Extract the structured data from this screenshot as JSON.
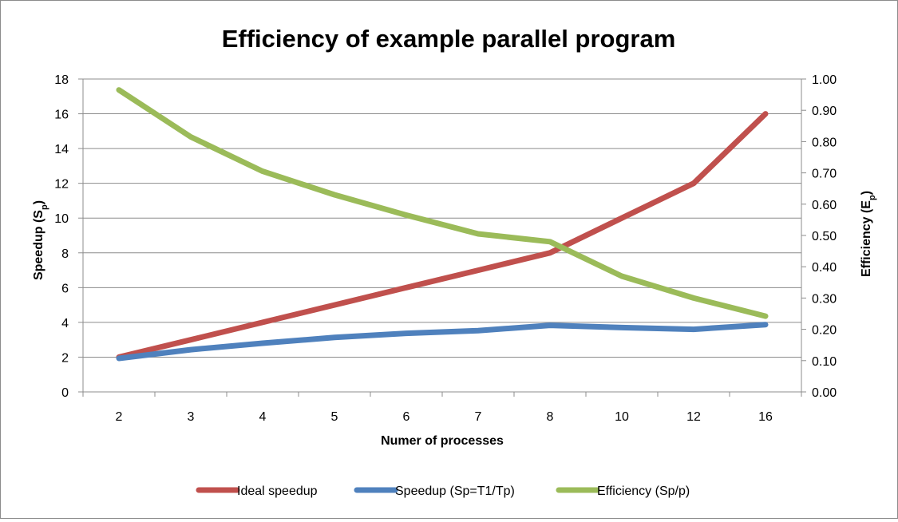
{
  "chart_data": {
    "type": "line",
    "title": "Efficiency of example parallel program",
    "xlabel": "Numer of processes",
    "ylabel": {
      "main": "Speedup (S",
      "sub": "p",
      "end": ")"
    },
    "y2label": {
      "main": "Efficiency (E",
      "sub": "p",
      "end": ")"
    },
    "categories": [
      "2",
      "3",
      "4",
      "5",
      "6",
      "7",
      "8",
      "10",
      "12",
      "16"
    ],
    "ylim": [
      0,
      18
    ],
    "y2lim": [
      0,
      1
    ],
    "yticks": [
      "0",
      "2",
      "4",
      "6",
      "8",
      "10",
      "12",
      "14",
      "16",
      "18"
    ],
    "y2ticks": [
      "0.00",
      "0.10",
      "0.20",
      "0.30",
      "0.40",
      "0.50",
      "0.60",
      "0.70",
      "0.80",
      "0.90",
      "1.00"
    ],
    "grid": true,
    "legend": "bottom",
    "series": [
      {
        "name": "Ideal speedup",
        "axis": "left",
        "color": "#c0504d",
        "values": [
          2,
          3,
          4,
          5,
          6,
          7,
          8,
          10,
          12,
          16
        ]
      },
      {
        "name": "Speedup (Sp=T1/Tp)",
        "axis": "left",
        "color": "#4f81bd",
        "values": [
          1.93,
          2.43,
          2.8,
          3.13,
          3.37,
          3.52,
          3.83,
          3.7,
          3.6,
          3.87
        ]
      },
      {
        "name": "Efficiency (Sp/p)",
        "axis": "right",
        "color": "#9bbb59",
        "values": [
          0.965,
          0.815,
          0.705,
          0.63,
          0.565,
          0.505,
          0.48,
          0.37,
          0.3,
          0.242
        ]
      }
    ]
  }
}
